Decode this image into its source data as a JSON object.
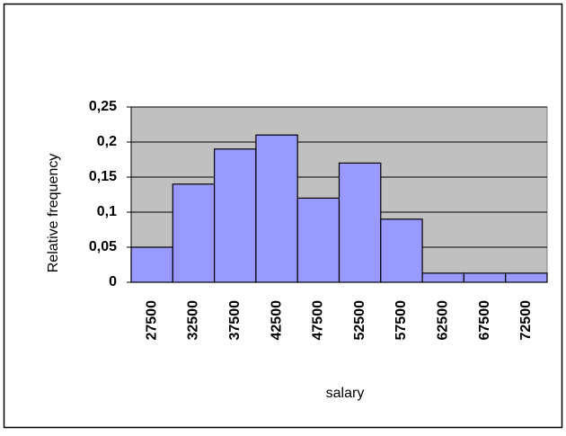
{
  "chart_data": {
    "type": "bar",
    "x_label": "salary",
    "y_label": "Relative frequency",
    "categories": [
      "27500",
      "32500",
      "37500",
      "42500",
      "47500",
      "52500",
      "57500",
      "62500",
      "67500",
      "72500"
    ],
    "values": [
      0.05,
      0.14,
      0.19,
      0.21,
      0.12,
      0.17,
      0.09,
      0.013,
      0.013,
      0.013
    ],
    "color": "#9999ff",
    "ylim": [
      0,
      0.25
    ],
    "yticks": [
      0,
      {
        "value": 0.05,
        "label": "0,05"
      },
      {
        "value": 0.1,
        "label": "0,1"
      },
      {
        "value": 0.15,
        "label": "0,15"
      },
      {
        "value": 0.2,
        "label": "0,2"
      },
      {
        "value": 0.25,
        "label": "0,25"
      }
    ],
    "grid": true
  }
}
